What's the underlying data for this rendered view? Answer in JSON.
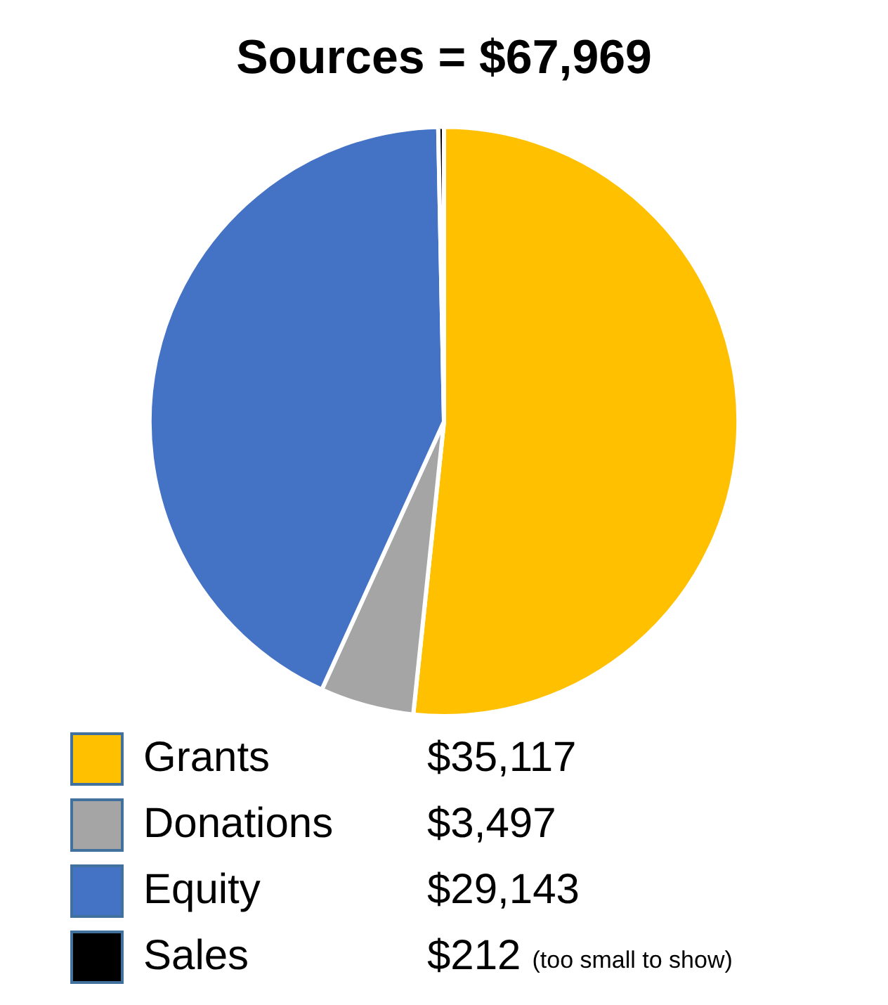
{
  "chart_data": {
    "type": "pie",
    "title": "Sources = $67,969",
    "categories": [
      "Grants",
      "Donations",
      "Equity",
      "Sales"
    ],
    "values": [
      35117,
      3497,
      29143,
      212
    ],
    "colors": [
      "#ffc000",
      "#a5a5a5",
      "#4472c4",
      "#000000"
    ],
    "value_labels": [
      "$35,117",
      "$3,497",
      "$29,143",
      "$212"
    ],
    "annotations": [
      {
        "text": "(too small to show)",
        "x": "Sales"
      }
    ],
    "legend": "bottom"
  }
}
